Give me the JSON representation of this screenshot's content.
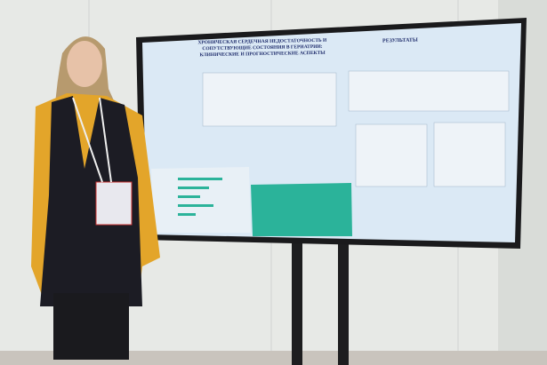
{
  "poster": {
    "title": "ХРОНИЧЕСКАЯ СЕРДЕЧНАЯ НЕДОСТАТОЧНОСТЬ И СОПУТСТВУЮЩИЕ СОСТОЯНИЯ В ГЕРИАТРИИ: КЛИНИЧЕСКИЕ И ПРОГНОСТИЧЕСКИЕ АСПЕКТЫ",
    "results_heading": "РЕЗУЛЬТАТЫ"
  }
}
